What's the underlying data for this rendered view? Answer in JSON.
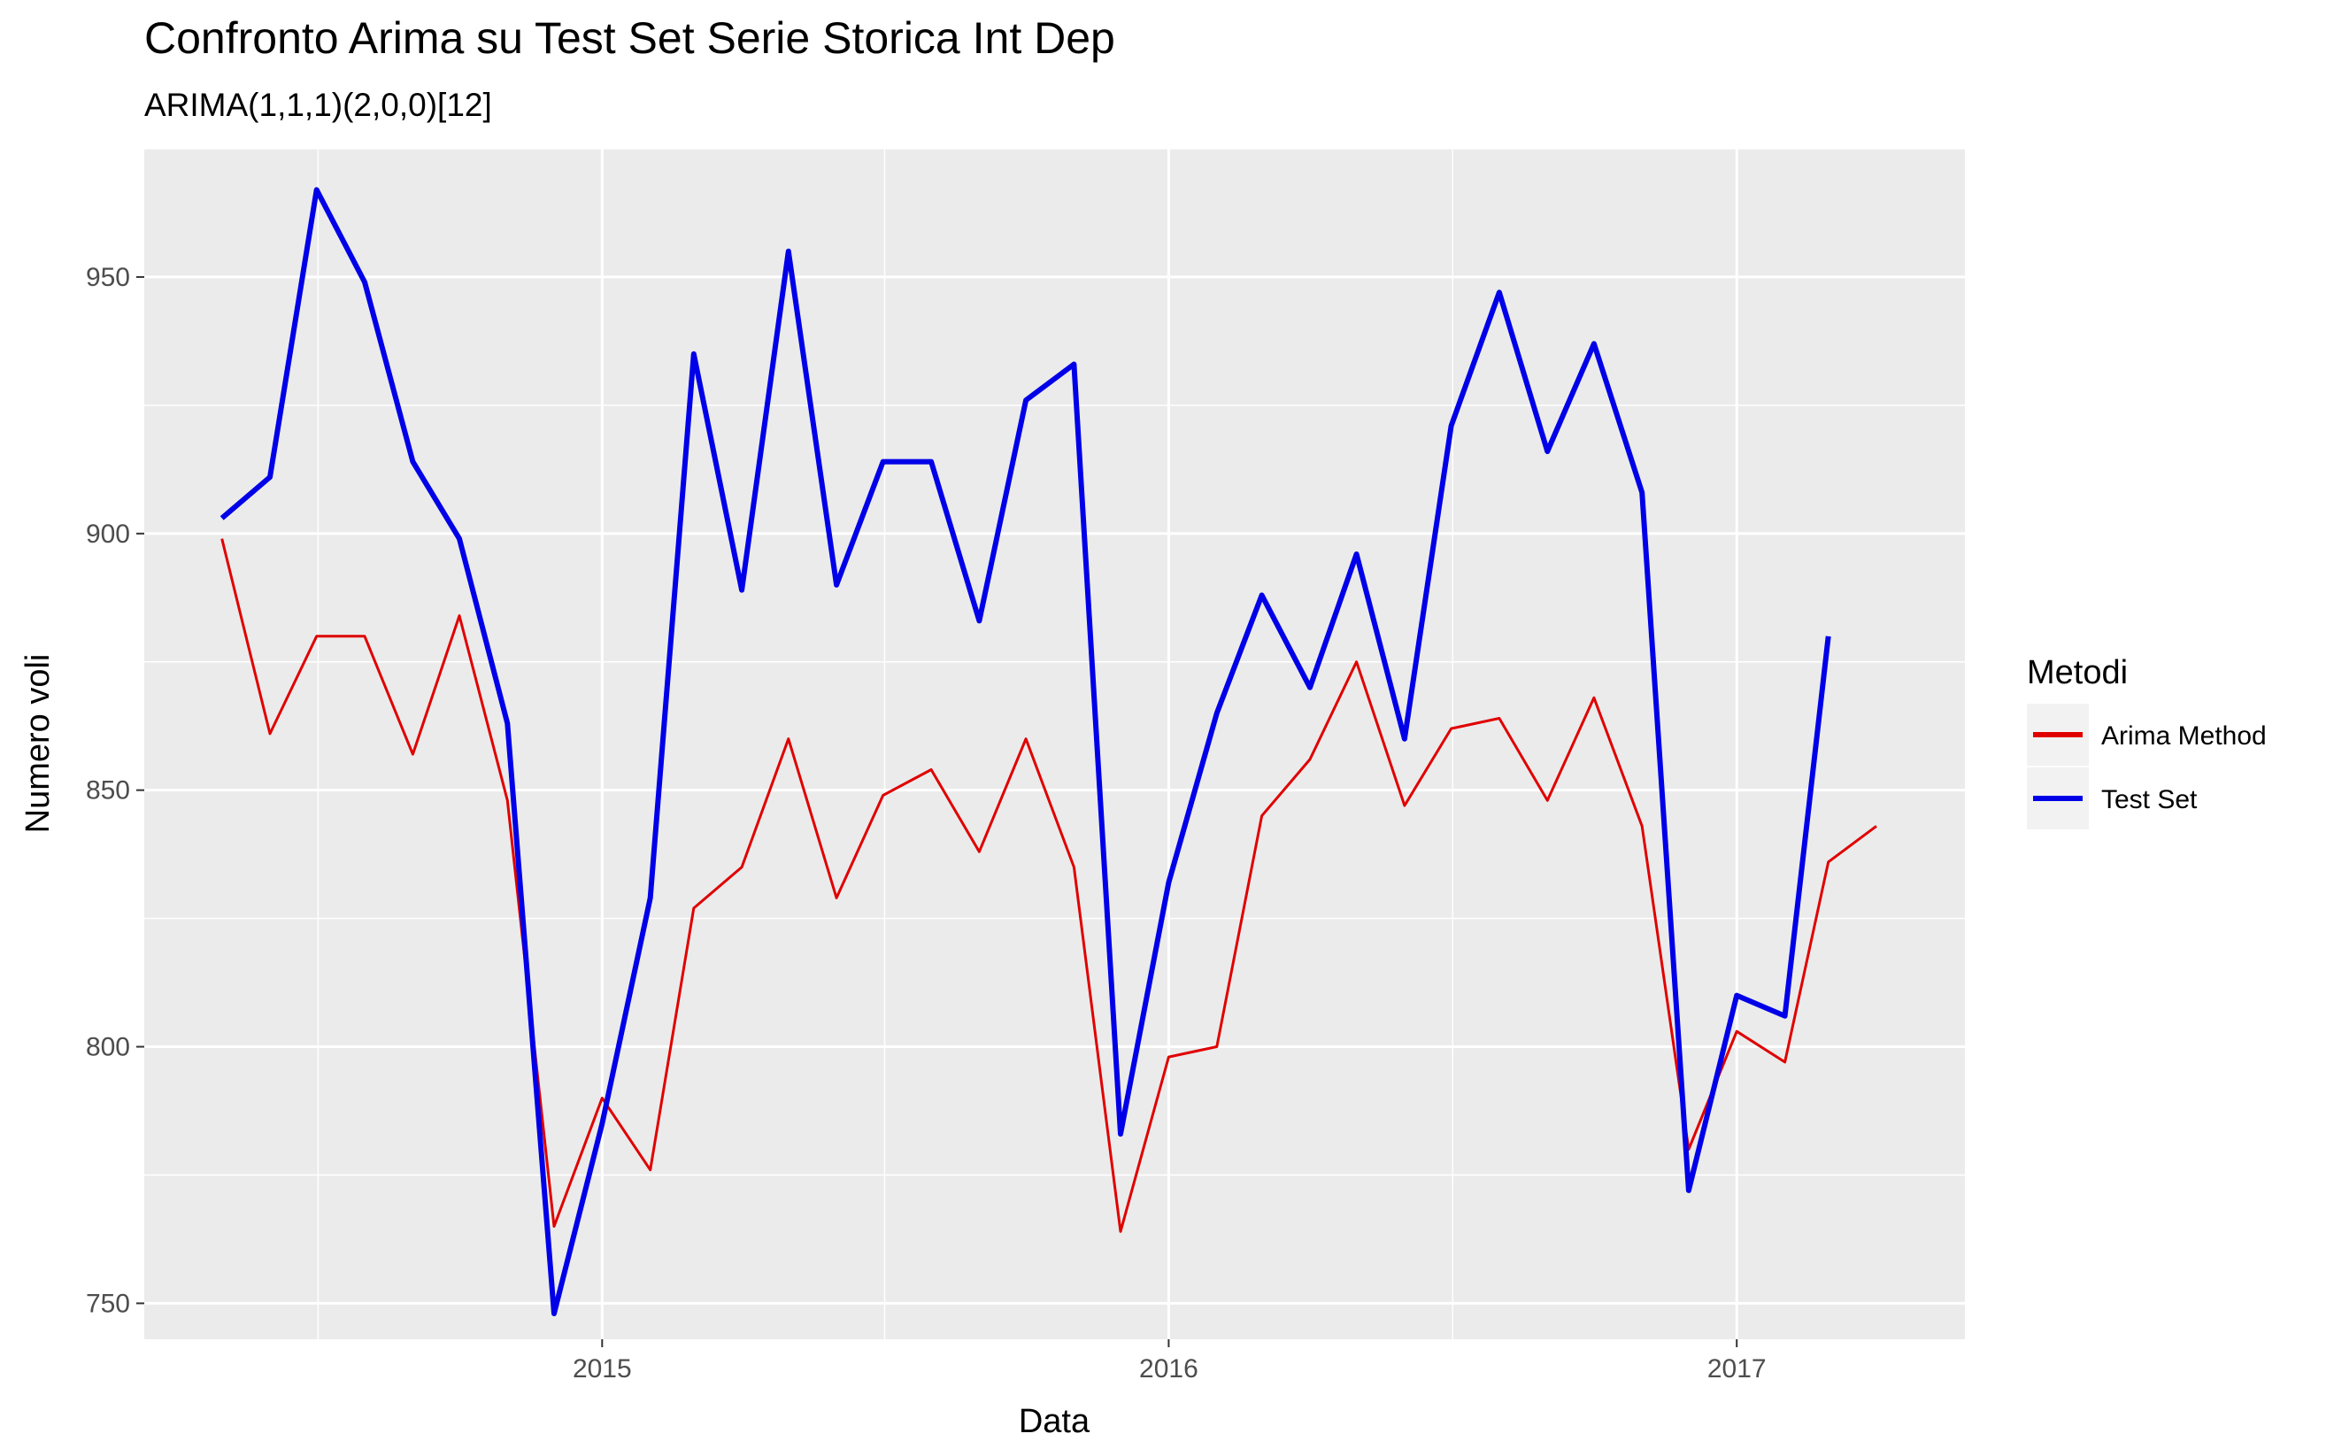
{
  "chart_data": {
    "type": "line",
    "title": "Confronto Arima su Test Set Serie Storica Int Dep",
    "subtitle": "ARIMA(1,1,1)(2,0,0)[12]",
    "xlabel": "Data",
    "ylabel": "Numero voli",
    "x_ticks": [
      "2015",
      "2016",
      "2017"
    ],
    "y_ticks": [
      750,
      800,
      850,
      900,
      950
    ],
    "xlim": [
      "2014-03-12",
      "2017-05-28"
    ],
    "ylim": [
      743,
      975
    ],
    "grid": true,
    "legend": {
      "title": "Metodi",
      "position": "right"
    },
    "x": [
      "2014-05-01",
      "2014-06-01",
      "2014-07-01",
      "2014-08-01",
      "2014-09-01",
      "2014-10-01",
      "2014-11-01",
      "2014-12-01",
      "2015-01-01",
      "2015-02-01",
      "2015-03-01",
      "2015-04-01",
      "2015-05-01",
      "2015-06-01",
      "2015-07-01",
      "2015-08-01",
      "2015-09-01",
      "2015-10-01",
      "2015-11-01",
      "2015-12-01",
      "2016-01-01",
      "2016-02-01",
      "2016-03-01",
      "2016-04-01",
      "2016-05-01",
      "2016-06-01",
      "2016-07-01",
      "2016-08-01",
      "2016-09-01",
      "2016-10-01",
      "2016-11-01",
      "2016-12-01",
      "2017-01-01",
      "2017-02-01",
      "2017-03-01",
      "2017-04-01"
    ],
    "series": [
      {
        "name": "Arima Method",
        "color": "#e00000",
        "values": [
          899,
          861,
          880,
          880,
          857,
          884,
          848,
          765,
          790,
          776,
          827,
          835,
          860,
          829,
          849,
          854,
          838,
          860,
          835,
          764,
          798,
          800,
          845,
          856,
          875,
          847,
          862,
          864,
          848,
          868,
          843,
          780,
          803,
          797,
          836,
          843
        ]
      },
      {
        "name": "Test Set",
        "color": "#0000e8",
        "values": [
          903,
          911,
          967,
          949,
          914,
          899,
          863,
          748,
          785,
          829,
          935,
          889,
          955,
          890,
          914,
          914,
          883,
          926,
          933,
          783,
          832,
          865,
          888,
          870,
          896,
          860,
          921,
          947,
          916,
          937,
          908,
          772,
          810,
          806,
          880,
          null
        ]
      }
    ]
  }
}
